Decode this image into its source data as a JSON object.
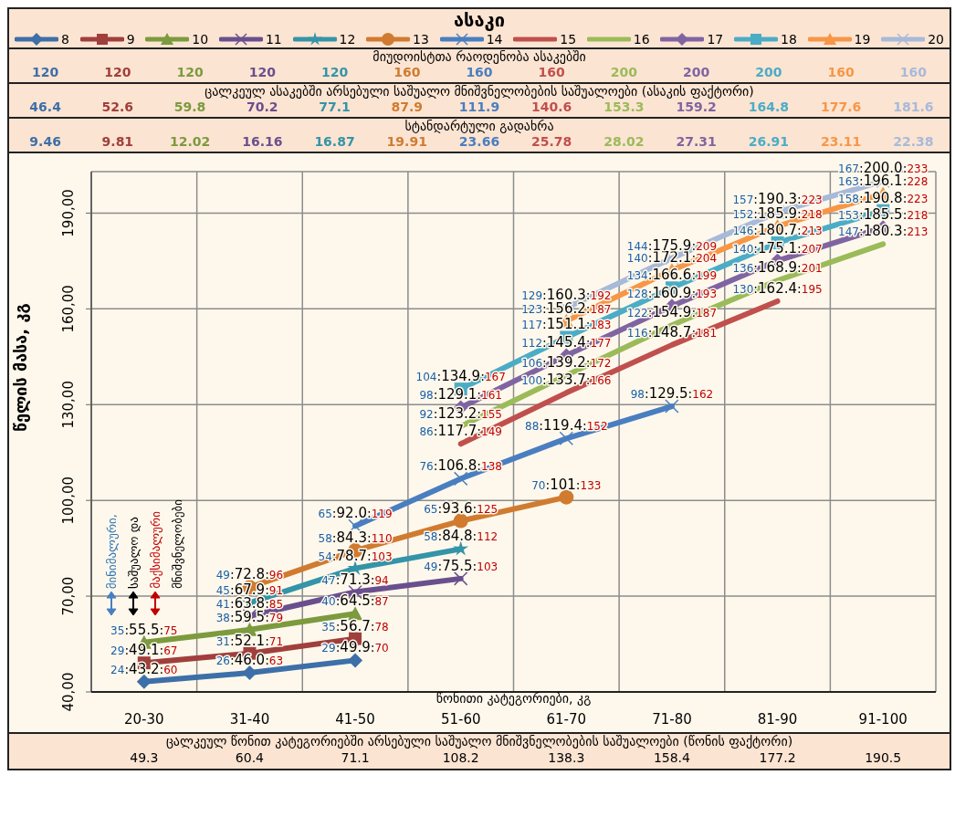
{
  "chart_data": {
    "type": "line",
    "legend_title": "ასაკი",
    "xlabel": "წონითი კატეგორიები, კგ",
    "ylabel": "წელის მასა, კგ",
    "categories": [
      "20-30",
      "31-40",
      "41-50",
      "51-60",
      "61-70",
      "71-80",
      "81-90",
      "91-100"
    ],
    "ylim": [
      40,
      203
    ],
    "yticks": [
      {
        "value": 40,
        "label": "40,00"
      },
      {
        "value": 70,
        "label": "70,00"
      },
      {
        "value": 100,
        "label": "100,00"
      },
      {
        "value": 130,
        "label": "130,00"
      },
      {
        "value": 160,
        "label": "160,00"
      },
      {
        "value": 190,
        "label": "190,00"
      }
    ],
    "grid": true,
    "legend": "top",
    "line_style": "solid",
    "series": [
      {
        "name": "8",
        "color": "#3d6fa8",
        "marker": "diamond",
        "values": [
          43.2,
          46.0,
          49.9,
          null,
          null,
          null,
          null,
          null
        ],
        "value_labels": [
          "24:43.2:60",
          "26:46.0:63",
          "29:49.9:70",
          null,
          null,
          null,
          null,
          null
        ]
      },
      {
        "name": "9",
        "color": "#a03f3c",
        "marker": "square",
        "values": [
          49.1,
          52.1,
          56.7,
          null,
          null,
          null,
          null,
          null
        ],
        "value_labels": [
          "29:49.1:67",
          "31:52.1:71",
          "35:56.7:78",
          null,
          null,
          null,
          null,
          null
        ]
      },
      {
        "name": "10",
        "color": "#7c9a3e",
        "marker": "triangle",
        "values": [
          55.5,
          59.5,
          64.5,
          null,
          null,
          null,
          null,
          null
        ],
        "value_labels": [
          "35:55.5:75",
          "38:59.5:79",
          "40:64.5:87",
          null,
          null,
          null,
          null,
          null
        ]
      },
      {
        "name": "11",
        "color": "#6a4f8f",
        "marker": "cross",
        "values": [
          null,
          63.8,
          71.3,
          75.5,
          null,
          null,
          null,
          null
        ],
        "value_labels": [
          null,
          "41:63.8:85",
          "47:71.3:94",
          "49:75.5:103",
          null,
          null,
          null,
          null
        ]
      },
      {
        "name": "12",
        "color": "#3494a8",
        "marker": "star",
        "values": [
          null,
          67.9,
          78.7,
          84.8,
          null,
          null,
          null,
          null
        ],
        "value_labels": [
          null,
          "45:67.9:91",
          "54:78.7:103",
          "58:84.8:112",
          null,
          null,
          null,
          null
        ]
      },
      {
        "name": "13",
        "color": "#d07b30",
        "marker": "circle",
        "values": [
          null,
          72.8,
          84.3,
          93.6,
          101,
          null,
          null,
          null
        ],
        "value_labels": [
          null,
          "49:72.8:96",
          "58:84.3:110",
          "65:93.6:125",
          "70:101:133",
          null,
          null,
          null
        ]
      },
      {
        "name": "14",
        "color": "#4a7ec0",
        "marker": "cross",
        "values": [
          null,
          null,
          92.0,
          106.8,
          119.4,
          129.5,
          null,
          null
        ],
        "value_labels": [
          null,
          null,
          "65:92.0:119",
          "76:106.8:138",
          "88:119.4:152",
          "98:129.5:162",
          null,
          null
        ]
      },
      {
        "name": "15",
        "color": "#c0504d",
        "marker": "none",
        "values": [
          null,
          null,
          null,
          117.7,
          133.7,
          148.7,
          162.4,
          null
        ],
        "value_labels": [
          null,
          null,
          null,
          "86:117.7:149",
          "100:133.7:166",
          "116:148.7:181",
          "130:162.4:195",
          null
        ]
      },
      {
        "name": "16",
        "color": "#9bbb59",
        "marker": "none",
        "values": [
          null,
          null,
          null,
          123.2,
          139.2,
          154.9,
          168.9,
          180.3
        ],
        "value_labels": [
          null,
          null,
          null,
          "92:123.2:155",
          "106:139.2:172",
          "122:154.9:187",
          "136:168.9:201",
          "147:180.3:213"
        ]
      },
      {
        "name": "17",
        "color": "#8064a2",
        "marker": "diamond",
        "values": [
          null,
          null,
          null,
          129.1,
          145.4,
          160.9,
          175.1,
          185.5
        ],
        "value_labels": [
          null,
          null,
          null,
          "98:129.1:161",
          "112:145.4:177",
          "128:160.9:193",
          "140:175.1:207",
          "153:185.5:218"
        ]
      },
      {
        "name": "18",
        "color": "#4bacc6",
        "marker": "square",
        "values": [
          null,
          null,
          null,
          134.9,
          151.1,
          166.6,
          180.7,
          190.8
        ],
        "value_labels": [
          null,
          null,
          null,
          "104:134.9:167",
          "117:151.1:183",
          "134:166.6:199",
          "146:180.7:213",
          "158:190.8:223"
        ]
      },
      {
        "name": "19",
        "color": "#f79646",
        "marker": "triangle",
        "values": [
          null,
          null,
          null,
          null,
          156.2,
          172.1,
          185.9,
          196.1
        ],
        "value_labels": [
          null,
          null,
          null,
          null,
          "123:156.2:187",
          "140:172.1:204",
          "152:185.9:218",
          "163:196.1:228"
        ]
      },
      {
        "name": "20",
        "color": "#a7bad9",
        "marker": "cross",
        "values": [
          null,
          null,
          null,
          null,
          160.3,
          175.9,
          190.3,
          200.0
        ],
        "value_labels": [
          null,
          null,
          null,
          null,
          "129:160.3:192",
          "144:175.9:209",
          "157:190.3:223",
          "167:200.0:233"
        ]
      }
    ],
    "annotations": [
      "მიუდოისტთა რაოდენობა ასაკებში",
      "120",
      "120",
      "120",
      "120",
      "120",
      "160",
      "160",
      "160",
      "200",
      "200",
      "200",
      "160",
      "160",
      "ცალკეულ ასაკებში არსებული საშუალო მნიშვნელობების საშუალოები (ასაკის ფაქტორი)",
      "46.4",
      "52.6",
      "59.8",
      "70.2",
      "77.1",
      "87.9",
      "111.9",
      "140.6",
      "153.3",
      "159.2",
      "164.8",
      "177.6",
      "181.6",
      "სტანდარტული გადახრა",
      "9.46",
      "9.81",
      "12.02",
      "16.16",
      "16.87",
      "19.91",
      "23.66",
      "25.78",
      "28.02",
      "27.31",
      "26.91",
      "23.11",
      "22.38",
      "ცალკეულ წონით კატეგორიებში არსებული საშუალო მნიშვნელობების საშუალოები (წონის ფაქტორი)",
      "49.3",
      "60.4",
      "71.1",
      "108.2",
      "138.3",
      "158.4",
      "177.2",
      "190.5",
      "მინიმალური,",
      "საშუალო და",
      "მაქსიმალური",
      "მნიშვნელობები"
    ]
  }
}
